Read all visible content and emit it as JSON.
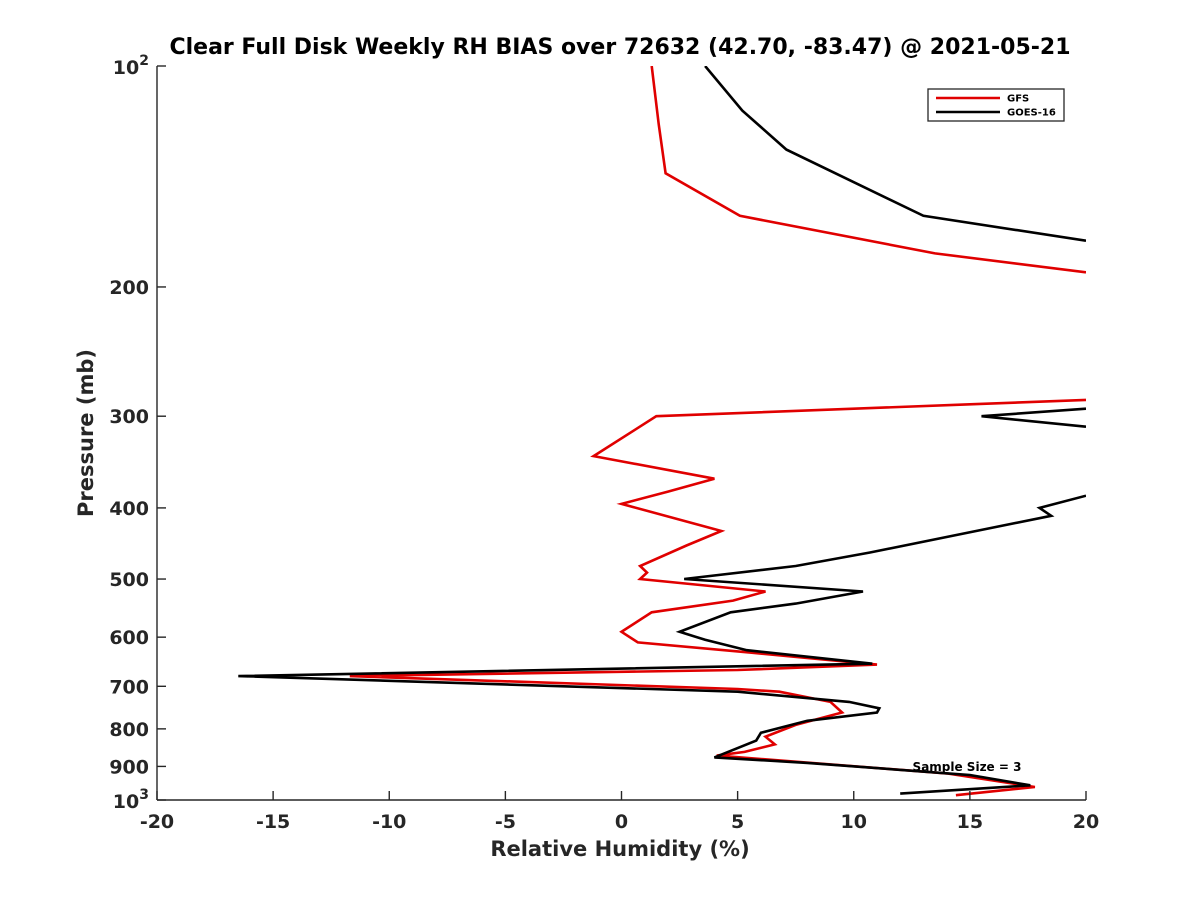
{
  "chart_data": {
    "type": "line",
    "title": "Clear Full Disk Weekly RH BIAS over 72632 (42.70, -83.47) @ 2021-05-21",
    "xlabel": "Relative Humidity (%)",
    "ylabel": "Pressure (mb)",
    "xlim": [
      -20,
      20
    ],
    "ylim": [
      100,
      1000
    ],
    "y_scale": "log",
    "y_reversed": true,
    "grid": false,
    "legend_position": "top-right",
    "x_ticks": [
      -20,
      -15,
      -10,
      -5,
      0,
      5,
      10,
      15,
      20
    ],
    "x_tick_labels": [
      "-20",
      "-15",
      "-10",
      "-5",
      "0",
      "5",
      "10",
      "15",
      "20"
    ],
    "y_ticks": [
      200,
      300,
      400,
      500,
      600,
      700,
      800,
      900
    ],
    "y_tick_labels": [
      "200",
      "300",
      "400",
      "500",
      "600",
      "700",
      "800",
      "900"
    ],
    "y_ticks_exponent": [
      {
        "value": 100,
        "base": "10",
        "exp": "2"
      },
      {
        "value": 1000,
        "base": "10",
        "exp": "3"
      }
    ],
    "annotation": "Sample Size = 3",
    "series": [
      {
        "name": "GFS",
        "color": "#e00000",
        "points": [
          [
            1.3,
            100
          ],
          [
            1.6,
            120
          ],
          [
            1.9,
            140
          ],
          [
            5.1,
            160
          ],
          [
            13.5,
            180
          ],
          [
            20,
            191
          ],
          null,
          [
            20,
            285
          ],
          [
            15.0,
            289
          ],
          [
            1.5,
            300
          ],
          [
            -1.2,
            340
          ],
          [
            4.0,
            365
          ],
          [
            2.0,
            380
          ],
          [
            0,
            395
          ],
          [
            4.3,
            430
          ],
          [
            2.8,
            450
          ],
          [
            0.8,
            480
          ],
          [
            1.1,
            490
          ],
          [
            0.8,
            500
          ],
          [
            6.2,
            520
          ],
          [
            4.8,
            535
          ],
          [
            1.3,
            555
          ],
          [
            0,
            590
          ],
          [
            0.7,
            610
          ],
          [
            5.6,
            630
          ],
          [
            11.0,
            654
          ],
          [
            5.0,
            665
          ],
          [
            -11.7,
            678
          ],
          [
            5.0,
            706
          ],
          [
            6.8,
            712
          ],
          [
            9.0,
            735
          ],
          [
            9.5,
            760
          ],
          [
            7.5,
            790
          ],
          [
            6.2,
            820
          ],
          [
            6.6,
            840
          ],
          [
            5.3,
            860
          ],
          [
            4.1,
            870
          ],
          [
            14.0,
            920
          ],
          [
            17.8,
            960
          ],
          [
            14.4,
            985
          ]
        ]
      },
      {
        "name": "GOES-16",
        "color": "#000000",
        "points": [
          [
            3.6,
            100
          ],
          [
            5.2,
            115
          ],
          [
            7.1,
            130
          ],
          [
            13.0,
            160
          ],
          [
            20,
            173
          ],
          null,
          [
            20,
            293
          ],
          [
            15.5,
            300
          ],
          [
            20,
            310
          ],
          null,
          [
            20,
            385
          ],
          [
            18.0,
            400
          ],
          [
            18.5,
            410
          ],
          [
            10.7,
            460
          ],
          [
            7.5,
            480
          ],
          [
            2.7,
            500
          ],
          [
            10.4,
            520
          ],
          [
            7.5,
            540
          ],
          [
            4.7,
            555
          ],
          [
            2.5,
            590
          ],
          [
            3.6,
            605
          ],
          [
            5.4,
            625
          ],
          [
            10.8,
            652
          ],
          [
            -16.5,
            678
          ],
          [
            5.0,
            712
          ],
          [
            9.8,
            735
          ],
          [
            11.1,
            750
          ],
          [
            11.0,
            760
          ],
          [
            8.0,
            780
          ],
          [
            6.0,
            810
          ],
          [
            5.8,
            830
          ],
          [
            4.0,
            875
          ],
          [
            8.0,
            890
          ],
          [
            15.0,
            925
          ],
          [
            17.6,
            955
          ],
          [
            12.0,
            980
          ]
        ]
      }
    ]
  }
}
